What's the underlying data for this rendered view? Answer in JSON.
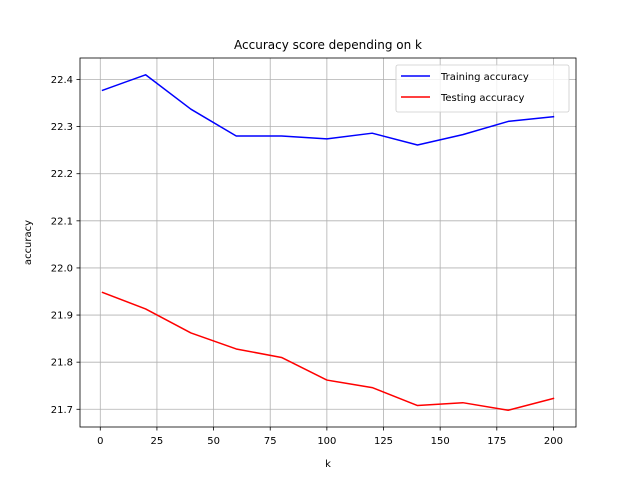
{
  "chart_data": {
    "type": "line",
    "title": "Accuracy score depending on k",
    "xlabel": "k",
    "ylabel": "accuracy",
    "x": [
      1,
      20,
      40,
      60,
      80,
      100,
      120,
      140,
      160,
      180,
      200
    ],
    "series": [
      {
        "name": "Training accuracy",
        "color": "#0000ff",
        "values": [
          22.377,
          22.41,
          22.337,
          22.28,
          22.28,
          22.274,
          22.286,
          22.261,
          22.283,
          22.311,
          22.321
        ]
      },
      {
        "name": "Testing accuracy",
        "color": "#ff0000",
        "values": [
          21.948,
          21.913,
          21.862,
          21.828,
          21.81,
          21.762,
          21.746,
          21.708,
          21.714,
          21.698,
          21.723
        ]
      }
    ],
    "xlim": [
      -8.95,
      209.95
    ],
    "ylim": [
      21.6624,
      22.4456
    ],
    "xticks": [
      "0",
      "25",
      "50",
      "75",
      "100",
      "125",
      "150",
      "175",
      "200"
    ],
    "yticks": [
      "21.7",
      "21.8",
      "21.9",
      "22.0",
      "22.1",
      "22.2",
      "22.3",
      "22.4"
    ],
    "grid": true,
    "legend": "top-right"
  }
}
